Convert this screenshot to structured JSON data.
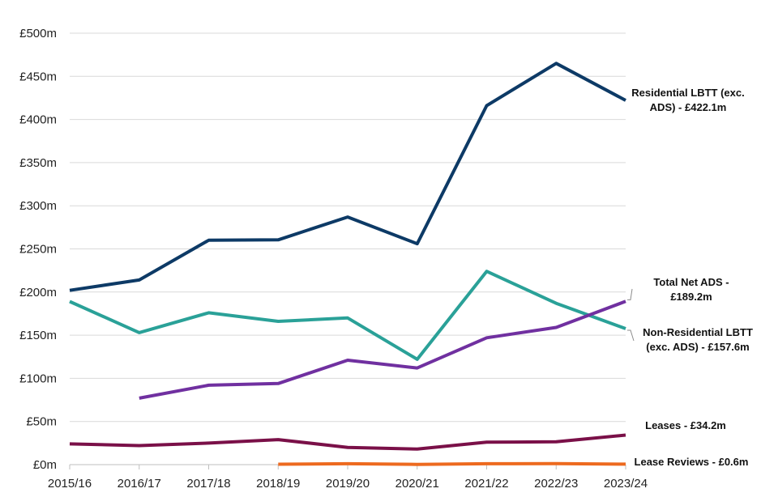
{
  "chart_data": {
    "type": "line",
    "categories": [
      "2015/16",
      "2016/17",
      "2017/18",
      "2018/19",
      "2019/20",
      "2020/21",
      "2021/22",
      "2022/23",
      "2023/24"
    ],
    "y_ticks": [
      "£0m",
      "£50m",
      "£100m",
      "£150m",
      "£200m",
      "£250m",
      "£300m",
      "£350m",
      "£400m",
      "£450m",
      "£500m"
    ],
    "ylim": [
      0,
      500
    ],
    "grid": true,
    "series": [
      {
        "name": "Residential LBTT (exc. ADS)",
        "color": "#0d3a66",
        "values": [
          202,
          214,
          260,
          260.5,
          287,
          256,
          416,
          465,
          422.1
        ],
        "label_lines": [
          "Residential LBTT (exc.",
          "ADS) - £422.1m"
        ]
      },
      {
        "name": "Non-Residential LBTT (exc. ADS)",
        "color": "#2aa198",
        "values": [
          189,
          153,
          176,
          166,
          170,
          122,
          224,
          187,
          157.6
        ],
        "label_lines": [
          "Non-Residential LBTT",
          "(exc. ADS) - £157.6m"
        ]
      },
      {
        "name": "Total Net ADS",
        "color": "#7030a0",
        "values": [
          null,
          77,
          92,
          94,
          121,
          112,
          147,
          159,
          189.2
        ],
        "label_lines": [
          "Total Net ADS -",
          "£189.2m"
        ]
      },
      {
        "name": "Leases",
        "color": "#7a1048",
        "values": [
          24,
          22,
          25,
          29,
          20,
          18,
          26,
          26.5,
          34.2
        ],
        "label_lines": [
          "Leases - £34.2m"
        ]
      },
      {
        "name": "Lease Reviews",
        "color": "#ed6a1f",
        "values": [
          null,
          null,
          null,
          0.5,
          1,
          0.3,
          1,
          1.2,
          0.6
        ],
        "label_lines": [
          "Lease Reviews - £0.6m"
        ]
      }
    ]
  }
}
